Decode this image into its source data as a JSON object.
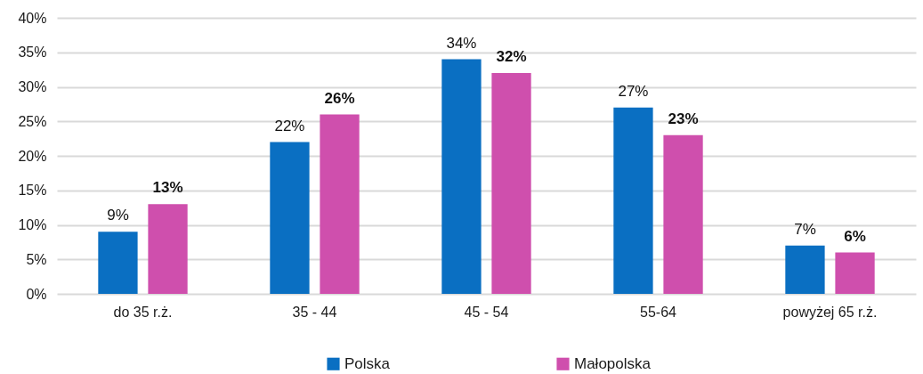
{
  "chart_data": {
    "type": "bar",
    "categories": [
      "do 35 r.ż.",
      "35 - 44",
      "45 - 54",
      "55-64",
      "powyżej 65 r.ż."
    ],
    "series": [
      {
        "name": "Polska",
        "color": "#0a6fc2",
        "values": [
          9,
          22,
          34,
          27,
          7
        ],
        "value_labels": [
          "9%",
          "22%",
          "34%",
          "27%",
          "7%"
        ]
      },
      {
        "name": "Małopolska",
        "color": "#cf4fad",
        "values": [
          13,
          26,
          32,
          23,
          6
        ],
        "value_labels": [
          "13%",
          "26%",
          "32%",
          "23%",
          "6%"
        ]
      }
    ],
    "ylim": [
      0,
      40
    ],
    "yticks": [
      {
        "value": 0,
        "label": "0%"
      },
      {
        "value": 5,
        "label": "5%"
      },
      {
        "value": 10,
        "label": "10%"
      },
      {
        "value": 15,
        "label": "15%"
      },
      {
        "value": 20,
        "label": "20%"
      },
      {
        "value": 25,
        "label": "25%"
      },
      {
        "value": 30,
        "label": "30%"
      },
      {
        "value": 35,
        "label": "35%"
      },
      {
        "value": 40,
        "label": "40%"
      }
    ],
    "grid": "y",
    "legend": "bottom"
  }
}
